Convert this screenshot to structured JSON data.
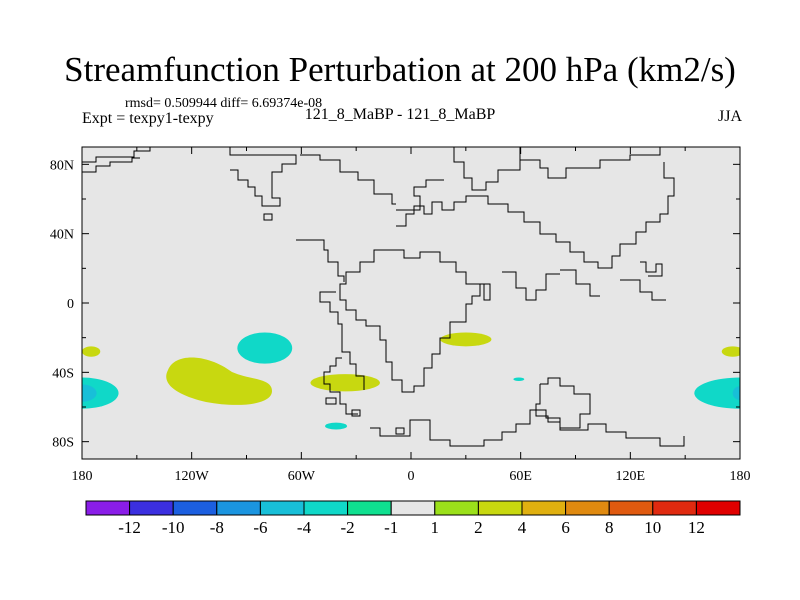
{
  "figure": {
    "title": "Streamfunction Perturbation at 200 hPa (km2/s)",
    "stats": "rmsd= 0.509944  diff= 6.69374e-08",
    "left_string": "Expt = texpy1-texpy",
    "center_string": "121_8_MaBP - 121_8_MaBP",
    "right_string": "JJA"
  },
  "chart_data": {
    "type": "heatmap",
    "title": "Streamfunction Perturbation at 200 hPa (km2/s)",
    "xlabel": "",
    "ylabel": "",
    "x_range": [
      -180,
      180
    ],
    "y_range": [
      -90,
      90
    ],
    "x_ticks": [
      {
        "value": -180,
        "label": "180"
      },
      {
        "value": -120,
        "label": "120W"
      },
      {
        "value": -60,
        "label": "60W"
      },
      {
        "value": 0,
        "label": "0"
      },
      {
        "value": 60,
        "label": "60E"
      },
      {
        "value": 120,
        "label": "120E"
      },
      {
        "value": 180,
        "label": "180"
      }
    ],
    "y_ticks": [
      {
        "value": 80,
        "label": "80N"
      },
      {
        "value": 40,
        "label": "40N"
      },
      {
        "value": 0,
        "label": "0"
      },
      {
        "value": -40,
        "label": "40S"
      },
      {
        "value": -80,
        "label": "80S"
      }
    ],
    "background_color": "#e6e6e6",
    "colorbar": {
      "levels": [
        "-12",
        "-10",
        "-8",
        "-6",
        "-4",
        "-2",
        "-1",
        "1",
        "2",
        "4",
        "6",
        "8",
        "10",
        "12"
      ],
      "colors": [
        "#8a1de8",
        "#3b2fe0",
        "#1c5fe0",
        "#1b95e0",
        "#18bfd8",
        "#10d8c8",
        "#10e090",
        "#e6e6e6",
        "#9be01a",
        "#c8d810",
        "#e0b010",
        "#e08a10",
        "#e05a10",
        "#e02a10",
        "#e00000"
      ]
    },
    "anomalies": [
      {
        "lon": -180,
        "lat": -52,
        "rlon": 20,
        "rlat": 9,
        "level": "-2"
      },
      {
        "lon": -180,
        "lat": -52,
        "rlon": 8,
        "rlat": 5,
        "level": "-4"
      },
      {
        "lon": 180,
        "lat": -52,
        "rlon": 25,
        "rlat": 9,
        "level": "-2"
      },
      {
        "lon": 180,
        "lat": -52,
        "rlon": 4,
        "rlat": 4,
        "level": "-4"
      },
      {
        "lon": -80,
        "lat": -26,
        "rlon": 15,
        "rlat": 9,
        "level": "-2"
      },
      {
        "lon": 30,
        "lat": -21,
        "rlon": 14,
        "rlat": 4,
        "level": "2"
      },
      {
        "lon": -36,
        "lat": -46,
        "rlon": 19,
        "rlat": 5,
        "level": "2"
      },
      {
        "lon": -175,
        "lat": -28,
        "rlon": 5,
        "rlat": 3,
        "level": "2"
      },
      {
        "lon": 176,
        "lat": -28,
        "rlon": 6,
        "rlat": 3,
        "level": "2"
      },
      {
        "lon": -41,
        "lat": -71,
        "rlon": 6,
        "rlat": 2,
        "level": "-2"
      },
      {
        "lon": 59,
        "lat": -44,
        "rlon": 3,
        "rlat": 1,
        "level": "-2"
      }
    ]
  }
}
